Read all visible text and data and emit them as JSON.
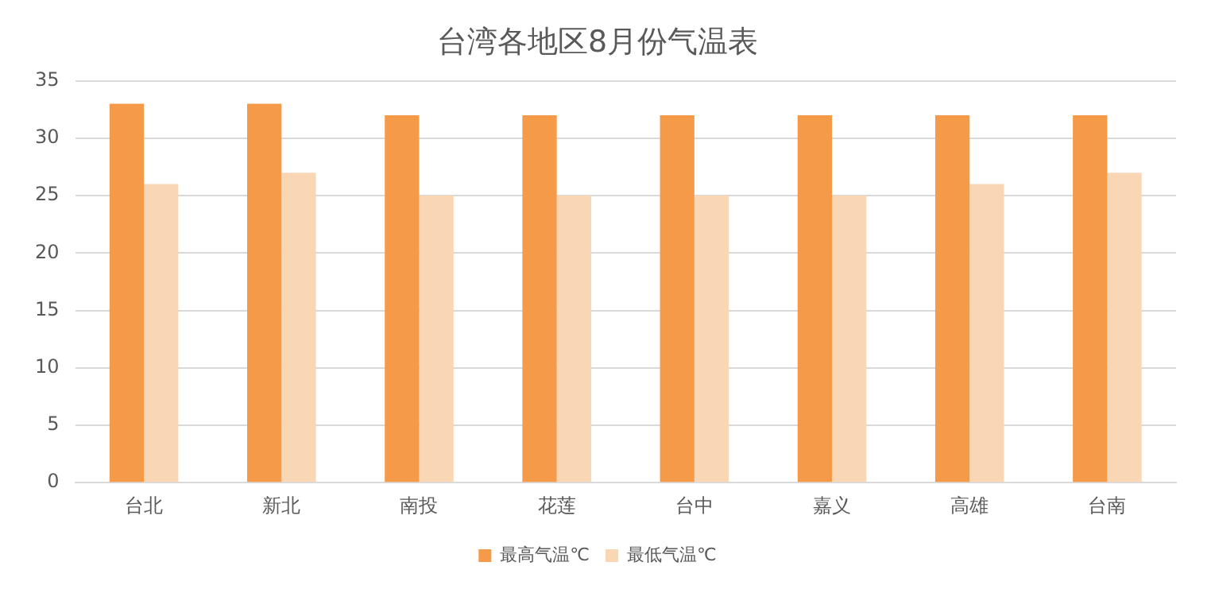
{
  "chart_data": {
    "type": "bar",
    "title": "台湾各地区8月份气温表",
    "categories": [
      "台北",
      "新北",
      "南投",
      "花莲",
      "台中",
      "嘉义",
      "高雄",
      "台南"
    ],
    "series": [
      {
        "name": "最高气温℃",
        "color": "#f59a48",
        "values": [
          33,
          33,
          32,
          32,
          32,
          32,
          32,
          32
        ]
      },
      {
        "name": "最低气温℃",
        "color": "#f9d7b5",
        "values": [
          26,
          27,
          25,
          25,
          25,
          25,
          26,
          27
        ]
      }
    ],
    "ylim": [
      0,
      35
    ],
    "yticks": [
      0,
      5,
      10,
      15,
      20,
      25,
      30,
      35
    ],
    "grid": "y",
    "legend": "bottom"
  }
}
